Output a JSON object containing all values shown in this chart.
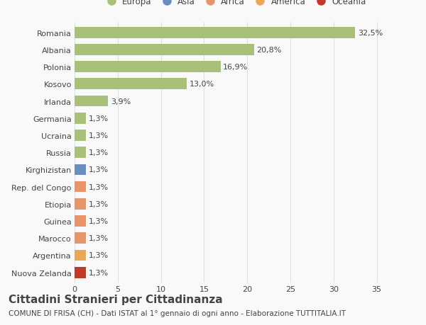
{
  "categories": [
    "Nuova Zelanda",
    "Argentina",
    "Marocco",
    "Guinea",
    "Etiopia",
    "Rep. del Congo",
    "Kirghizistan",
    "Russia",
    "Ucraina",
    "Germania",
    "Irlanda",
    "Kosovo",
    "Polonia",
    "Albania",
    "Romania"
  ],
  "values": [
    1.3,
    1.3,
    1.3,
    1.3,
    1.3,
    1.3,
    1.3,
    1.3,
    1.3,
    1.3,
    3.9,
    13.0,
    16.9,
    20.8,
    32.5
  ],
  "colors": [
    "#c0392b",
    "#e8a857",
    "#e8956d",
    "#e8956d",
    "#e8956d",
    "#e8956d",
    "#6b8ec0",
    "#a8c078",
    "#a8c078",
    "#a8c078",
    "#a8c078",
    "#a8c078",
    "#a8c078",
    "#a8c078",
    "#a8c078"
  ],
  "labels": [
    "1,3%",
    "1,3%",
    "1,3%",
    "1,3%",
    "1,3%",
    "1,3%",
    "1,3%",
    "1,3%",
    "1,3%",
    "1,3%",
    "3,9%",
    "13,0%",
    "16,9%",
    "20,8%",
    "32,5%"
  ],
  "legend": [
    {
      "label": "Europa",
      "color": "#a8c078"
    },
    {
      "label": "Asia",
      "color": "#6b8ec0"
    },
    {
      "label": "Africa",
      "color": "#e8956d"
    },
    {
      "label": "America",
      "color": "#e8a857"
    },
    {
      "label": "Oceania",
      "color": "#c0392b"
    }
  ],
  "title": "Cittadini Stranieri per Cittadinanza",
  "subtitle": "COMUNE DI FRISA (CH) - Dati ISTAT al 1° gennaio di ogni anno - Elaborazione TUTTITALIA.IT",
  "xlim": [
    0,
    37
  ],
  "xticks": [
    0,
    5,
    10,
    15,
    20,
    25,
    30,
    35
  ],
  "background_color": "#f9f9f9",
  "grid_color": "#e0e0e0",
  "text_color": "#444444",
  "title_fontsize": 11,
  "subtitle_fontsize": 7.5,
  "label_fontsize": 8,
  "tick_fontsize": 8,
  "legend_fontsize": 8.5
}
